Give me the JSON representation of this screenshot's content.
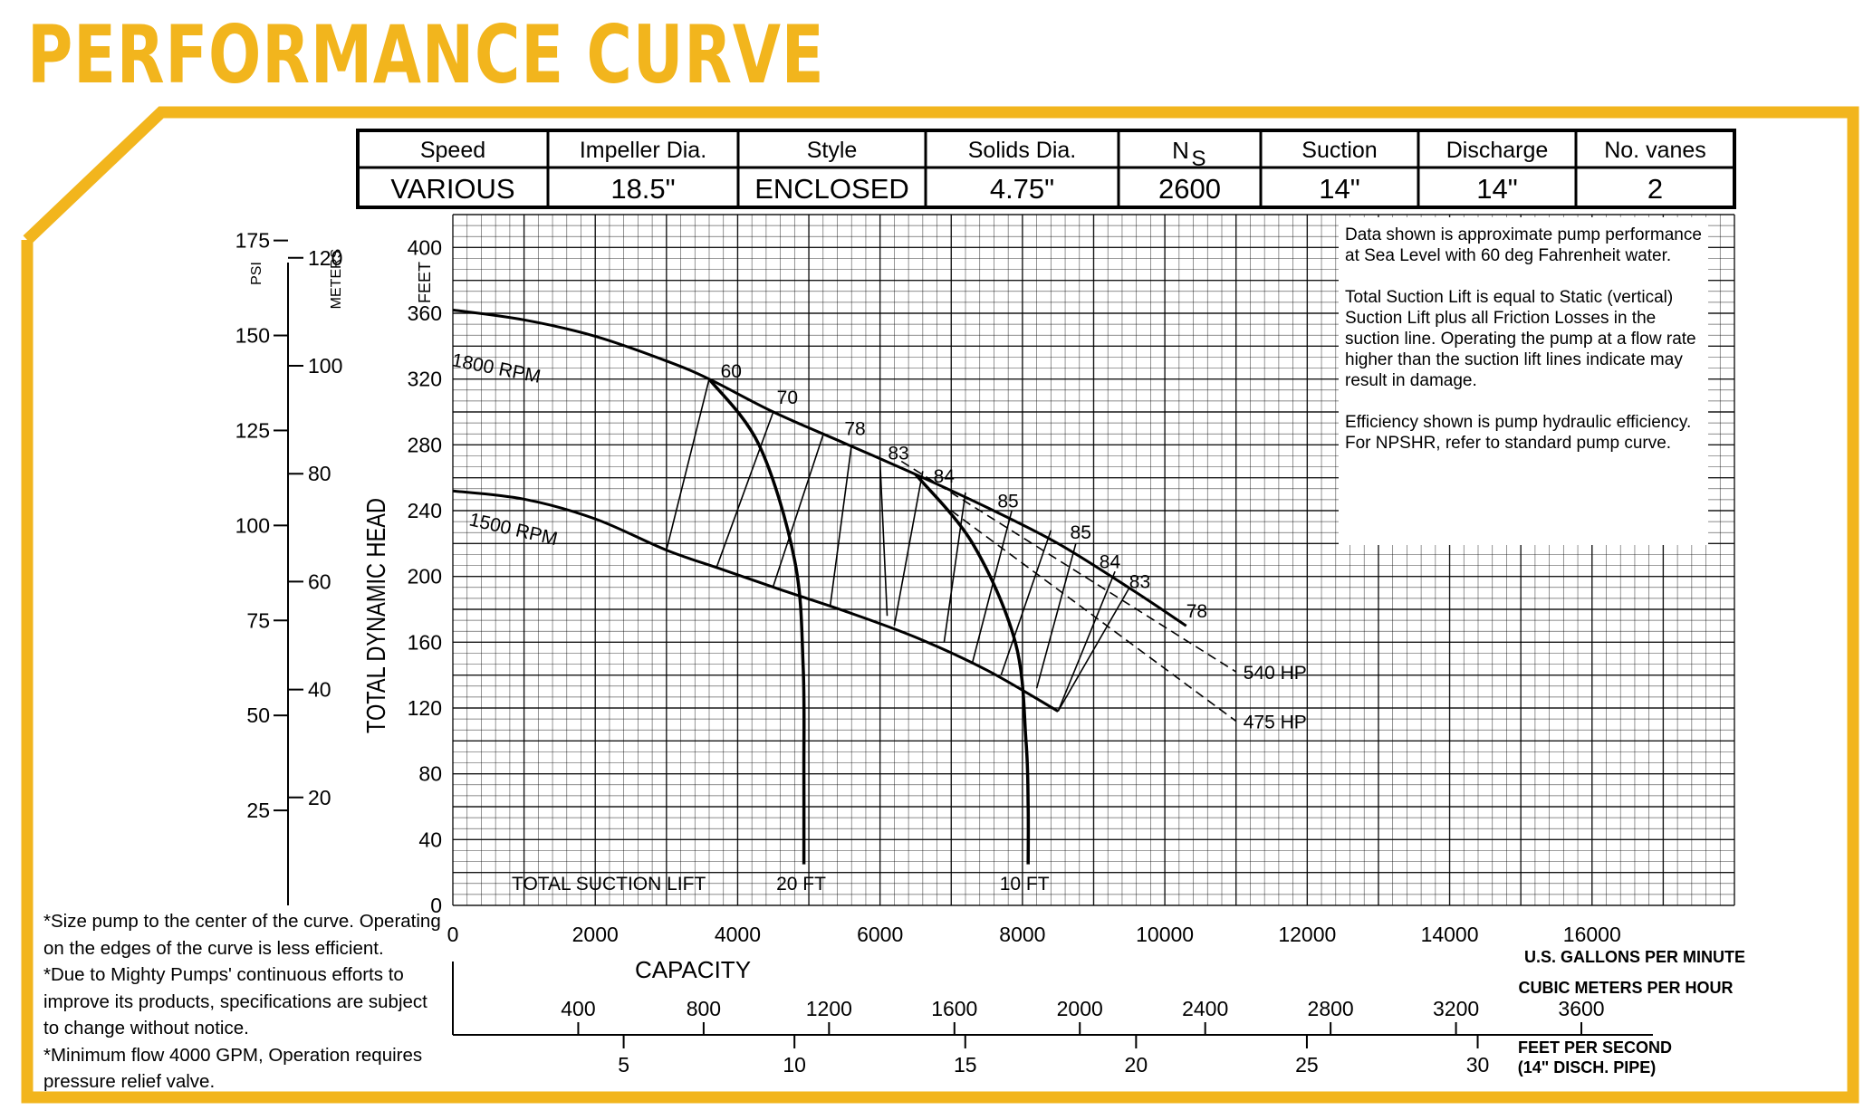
{
  "header": {
    "title": "PERFORMANCE CURVE"
  },
  "colors": {
    "accent": "#F2B51D",
    "grid": "#000000",
    "curve": "#000000"
  },
  "spec_table": {
    "headers": [
      "Speed",
      "Impeller Dia.",
      "Style",
      "Solids Dia.",
      "N_S",
      "Suction",
      "Discharge",
      "No. vanes"
    ],
    "ns_main": "N",
    "ns_sub": "S",
    "values": [
      "VARIOUS",
      "18.5\"",
      "ENCLOSED",
      "4.75\"",
      "2600",
      "14\"",
      "14\"",
      "2"
    ]
  },
  "notes": [
    "Data shown is approximate pump performance at Sea Level with 60 deg Fahrenheit water.",
    "Total Suction Lift is equal to Static (vertical) Suction Lift plus all Friction Losses in the suction line. Operating the pump at a flow rate higher than the suction lift lines indicate may result in damage.",
    "Efficiency shown is pump hydraulic efficiency. For NPSHR, refer to standard pump curve."
  ],
  "footnotes": [
    "*Size pump to the center of the curve. Operating",
    "on the edges of the curve is less efficient.",
    "*Due to Mighty Pumps' continuous efforts to",
    "improve its products, specifications are subject",
    "to change without notice.",
    "*Minimum flow 4000 GPM, Operation requires",
    "pressure relief valve."
  ],
  "chart_data": {
    "type": "line",
    "xlabel": "CAPACITY",
    "x_units_label": "U.S. GALLONS PER MINUTE",
    "ylabel": "TOTAL DYNAMIC HEAD",
    "y_units_label": "FEET",
    "xlim": [
      0,
      18000
    ],
    "ylim": [
      0,
      420
    ],
    "grid": true,
    "x_ticks": [
      0,
      2000,
      4000,
      6000,
      8000,
      10000,
      12000,
      14000,
      16000
    ],
    "y_ticks": [
      0,
      40,
      80,
      120,
      160,
      200,
      240,
      280,
      320,
      360,
      400
    ],
    "series": [
      {
        "name": "1800 RPM",
        "x": [
          0,
          1000,
          2000,
          3000,
          3600,
          4500,
          5500,
          6500,
          7500,
          8500,
          9500,
          10300
        ],
        "y": [
          362,
          356,
          346,
          331,
          320,
          300,
          281,
          262,
          242,
          220,
          193,
          170
        ]
      },
      {
        "name": "1500 RPM",
        "x": [
          0,
          1000,
          2000,
          3000,
          3800,
          4600,
          5500,
          6500,
          7500,
          8500
        ],
        "y": [
          252,
          247,
          235,
          216,
          204,
          192,
          179,
          163,
          143,
          118
        ]
      }
    ],
    "suction_lift": {
      "label": "TOTAL SUCTION LIFT",
      "curves": [
        {
          "name": "20 FT",
          "x": [
            3600,
            4300,
            4800,
            4920,
            4930,
            4930
          ],
          "y": [
            320,
            280,
            210,
            145,
            80,
            25
          ]
        },
        {
          "name": "10 FT",
          "x": [
            6500,
            7300,
            7900,
            8050,
            8080,
            8080
          ],
          "y": [
            262,
            220,
            160,
            100,
            60,
            25
          ]
        }
      ]
    },
    "efficiency": {
      "labels": [
        {
          "value": "60",
          "x": 3760,
          "y": 321
        },
        {
          "value": "70",
          "x": 4550,
          "y": 305
        },
        {
          "value": "78",
          "x": 5500,
          "y": 286
        },
        {
          "value": "83",
          "x": 6110,
          "y": 271
        },
        {
          "value": "84",
          "x": 6750,
          "y": 257
        },
        {
          "value": "85",
          "x": 7650,
          "y": 242
        },
        {
          "value": "85",
          "x": 8670,
          "y": 223
        },
        {
          "value": "84",
          "x": 9080,
          "y": 205
        },
        {
          "value": "83",
          "x": 9500,
          "y": 193
        },
        {
          "value": "78",
          "x": 10300,
          "y": 175
        }
      ],
      "ticks": [
        {
          "x1": 3000,
          "y1": 216,
          "x2": 3600,
          "y2": 320
        },
        {
          "x1": 3700,
          "y1": 205,
          "x2": 4500,
          "y2": 300
        },
        {
          "x1": 4500,
          "y1": 194,
          "x2": 5200,
          "y2": 286
        },
        {
          "x1": 5300,
          "y1": 182,
          "x2": 5600,
          "y2": 280
        },
        {
          "x1": 6100,
          "y1": 176,
          "x2": 6000,
          "y2": 270
        },
        {
          "x1": 6200,
          "y1": 170,
          "x2": 6600,
          "y2": 264
        },
        {
          "x1": 6900,
          "y1": 160,
          "x2": 7200,
          "y2": 251
        },
        {
          "x1": 7300,
          "y1": 148,
          "x2": 7850,
          "y2": 240
        },
        {
          "x1": 7700,
          "y1": 140,
          "x2": 8400,
          "y2": 228
        },
        {
          "x1": 8200,
          "y1": 132,
          "x2": 8750,
          "y2": 220
        },
        {
          "x1": 8500,
          "y1": 118,
          "x2": 9300,
          "y2": 203
        },
        {
          "x1": 8500,
          "y1": 118,
          "x2": 9500,
          "y2": 193
        },
        {
          "x1": 9500,
          "y1": 193,
          "x2": 10300,
          "y2": 170
        }
      ]
    },
    "hp_lines": [
      {
        "name": "540 HP",
        "x": [
          6300,
          11000
        ],
        "y": [
          270,
          142
        ]
      },
      {
        "name": "475 HP",
        "x": [
          7000,
          11000
        ],
        "y": [
          240,
          112
        ]
      }
    ],
    "secondary_axes": {
      "psi": {
        "label": "PSI",
        "ticks": [
          25,
          50,
          75,
          100,
          125,
          150,
          175
        ]
      },
      "meters": {
        "label": "METERS",
        "ticks": [
          20,
          40,
          60,
          80,
          100,
          120
        ]
      },
      "cubic_meters": {
        "label": "CUBIC METERS PER HOUR",
        "ticks": [
          400,
          800,
          1200,
          1600,
          2000,
          2400,
          2800,
          3200,
          3600
        ]
      },
      "velocity": {
        "label": "FEET PER SECOND",
        "sub_label": "(14\" DISCH. PIPE)",
        "ticks": [
          5,
          10,
          15,
          20,
          25,
          30
        ]
      }
    }
  }
}
